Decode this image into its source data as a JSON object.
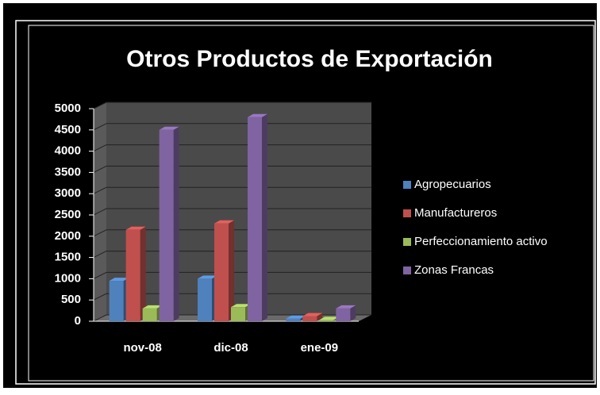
{
  "chart_data": {
    "type": "bar3d",
    "title": "Otros Productos de Exportación",
    "categories": [
      "nov-08",
      "dic-08",
      "ene-09"
    ],
    "series": [
      {
        "name": "Agropecuarios",
        "color": "#4f81bd",
        "values": [
          950,
          1000,
          60
        ]
      },
      {
        "name": "Manufactureros",
        "color": "#c0504d",
        "values": [
          2150,
          2300,
          120
        ]
      },
      {
        "name": "Perfeccionamiento activo",
        "color": "#9bbb59",
        "values": [
          300,
          330,
          30
        ]
      },
      {
        "name": "Zonas Francas",
        "color": "#8064a2",
        "values": [
          4500,
          4800,
          300
        ]
      }
    ],
    "ylim": [
      0,
      5000
    ],
    "yticks": [
      0,
      500,
      1000,
      1500,
      2000,
      2500,
      3000,
      3500,
      4000,
      4500,
      5000
    ],
    "grid": true,
    "legend": "right"
  }
}
